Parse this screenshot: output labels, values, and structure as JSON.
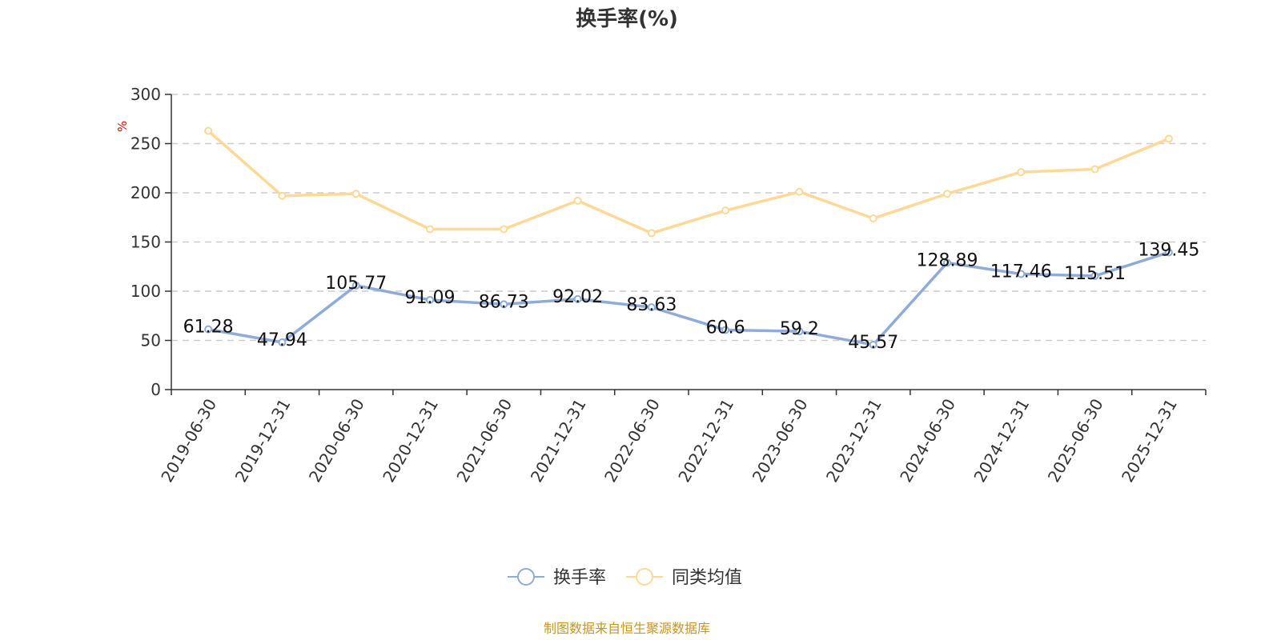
{
  "chart_data": {
    "type": "line",
    "title": "换手率(%)",
    "ylabel": "%",
    "xlabel": "",
    "ylim": [
      0,
      300
    ],
    "yticks": [
      0,
      50,
      100,
      150,
      200,
      250,
      300
    ],
    "grid": true,
    "legend_position": "bottom-center",
    "categories": [
      "2019-06-30",
      "2019-12-31",
      "2020-06-30",
      "2020-12-31",
      "2021-06-30",
      "2021-12-31",
      "2022-06-30",
      "2022-12-31",
      "2023-06-30",
      "2023-12-31",
      "2024-06-30",
      "2024-12-31",
      "2025-06-30",
      "2025-12-31"
    ],
    "series": [
      {
        "name": "换手率",
        "color": "#8eabd9",
        "show_labels": true,
        "values": [
          61.28,
          47.94,
          105.77,
          91.09,
          86.73,
          92.02,
          83.63,
          60.6,
          59.2,
          45.57,
          128.89,
          117.46,
          115.51,
          139.45
        ]
      },
      {
        "name": "同类均值",
        "color": "#fdd896",
        "show_labels": false,
        "values": [
          263,
          197,
          199,
          163,
          163,
          192,
          159,
          182,
          201,
          174,
          199,
          221,
          224,
          255
        ]
      }
    ]
  },
  "footer": {
    "source": "制图数据来自恒生聚源数据库",
    "color": "#c8961e"
  }
}
